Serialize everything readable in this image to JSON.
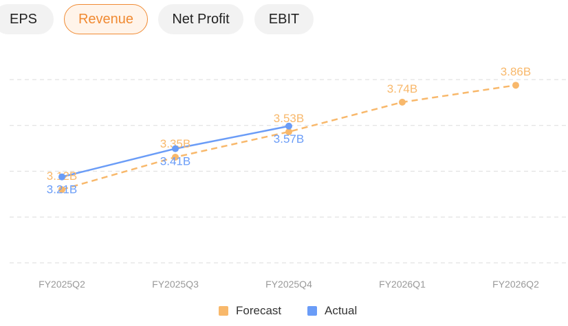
{
  "tabs": [
    {
      "label": "EPS",
      "active": false
    },
    {
      "label": "Revenue",
      "active": true
    },
    {
      "label": "Net Profit",
      "active": false
    },
    {
      "label": "EBIT",
      "active": false
    }
  ],
  "colors": {
    "forecast": "#f8b86b",
    "actual": "#6a9cf7",
    "accent": "#f08a32",
    "grid": "#e2e2e2",
    "tick": "#999999"
  },
  "chart_data": {
    "type": "line",
    "title": "",
    "xlabel": "",
    "ylabel": "",
    "categories": [
      "FY2025Q2",
      "FY2025Q3",
      "FY2025Q4",
      "FY2026Q1",
      "FY2026Q2"
    ],
    "ylim": [
      2.6,
      3.9
    ],
    "grid": true,
    "legend_position": "bottom-center",
    "series": [
      {
        "name": "Forecast",
        "style": "dashed",
        "values": [
          3.12,
          3.35,
          3.53,
          3.74,
          3.86
        ],
        "labels": [
          "3.12B",
          "3.35B",
          "3.53B",
          "3.74B",
          "3.86B"
        ]
      },
      {
        "name": "Actual",
        "style": "solid",
        "values": [
          3.21,
          3.41,
          3.57,
          null,
          null
        ],
        "labels": [
          "3.21B",
          "3.41B",
          "3.57B",
          null,
          null
        ]
      }
    ]
  }
}
